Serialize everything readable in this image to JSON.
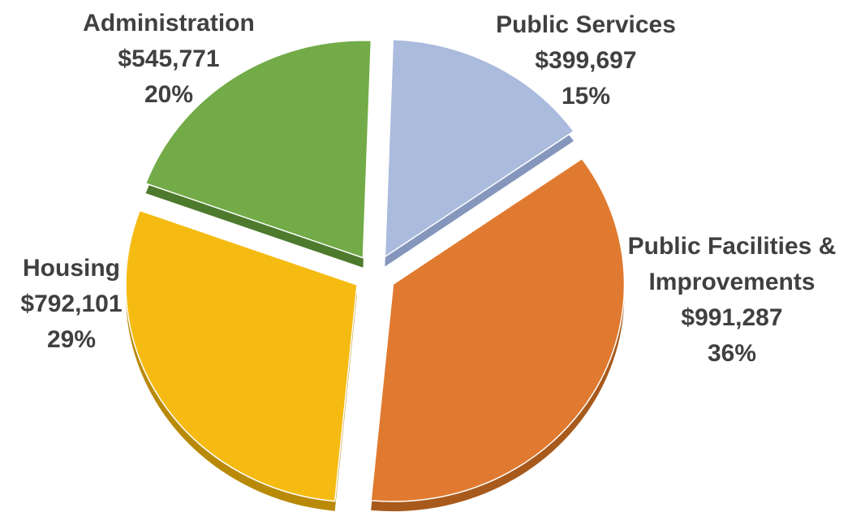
{
  "chart_data": {
    "type": "pie",
    "style": "3d-exploded",
    "slices": [
      {
        "name": "Public Services",
        "label_lines": [
          "Public Services"
        ],
        "value": 399697,
        "value_label": "$399,697",
        "percent_label": "15%",
        "color": "#aabbdd",
        "side_color": "#8596bc"
      },
      {
        "name": "Public Facilities & Improvements",
        "label_lines": [
          "Public Facilities &",
          "Improvements"
        ],
        "value": 991287,
        "value_label": "$991,287",
        "percent_label": "36%",
        "color": "#e07a30",
        "side_color": "#a85a1c"
      },
      {
        "name": "Housing",
        "label_lines": [
          "Housing"
        ],
        "value": 792101,
        "value_label": "$792,101",
        "percent_label": "29%",
        "color": "#f5bb12",
        "side_color": "#b98a08"
      },
      {
        "name": "Administration",
        "label_lines": [
          "Administration"
        ],
        "value": 545771,
        "value_label": "$545,771",
        "percent_label": "20%",
        "color": "#72ab48",
        "side_color": "#4d7a2c"
      }
    ],
    "legend": "none",
    "data_labels": "outside"
  }
}
